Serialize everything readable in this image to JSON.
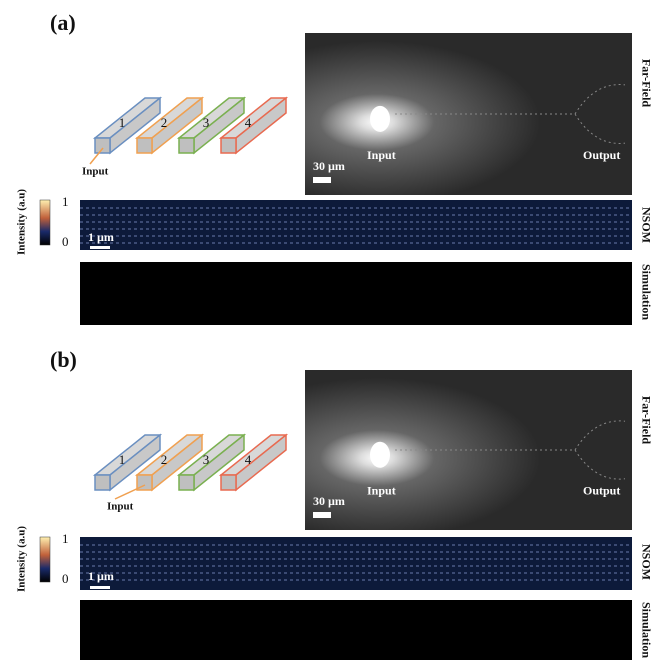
{
  "panels": [
    {
      "label": "(a)",
      "waveguides": [
        "1",
        "2",
        "3",
        "4"
      ],
      "input_label": "Input",
      "far_field": {
        "input": "Input",
        "output": "Output",
        "scale_bar": "30 µm",
        "side_label": "Far-Field"
      },
      "colorbar": {
        "title": "Intensity (a.u)",
        "max": "1",
        "min": "0"
      },
      "nsom": {
        "scale_bar": "1 µm",
        "side_label": "NSOM"
      },
      "simulation": {
        "side_label": "Simulation"
      }
    },
    {
      "label": "(b)",
      "waveguides": [
        "1",
        "2",
        "3",
        "4"
      ],
      "input_label": "Input",
      "far_field": {
        "input": "Input",
        "output": "Output",
        "scale_bar": "30 µm",
        "side_label": "Far-Field"
      },
      "colorbar": {
        "title": "Intensity (a.u)",
        "max": "1",
        "min": "0"
      },
      "nsom": {
        "scale_bar": "1 µm",
        "side_label": "NSOM"
      },
      "simulation": {
        "side_label": "Simulation"
      }
    }
  ]
}
